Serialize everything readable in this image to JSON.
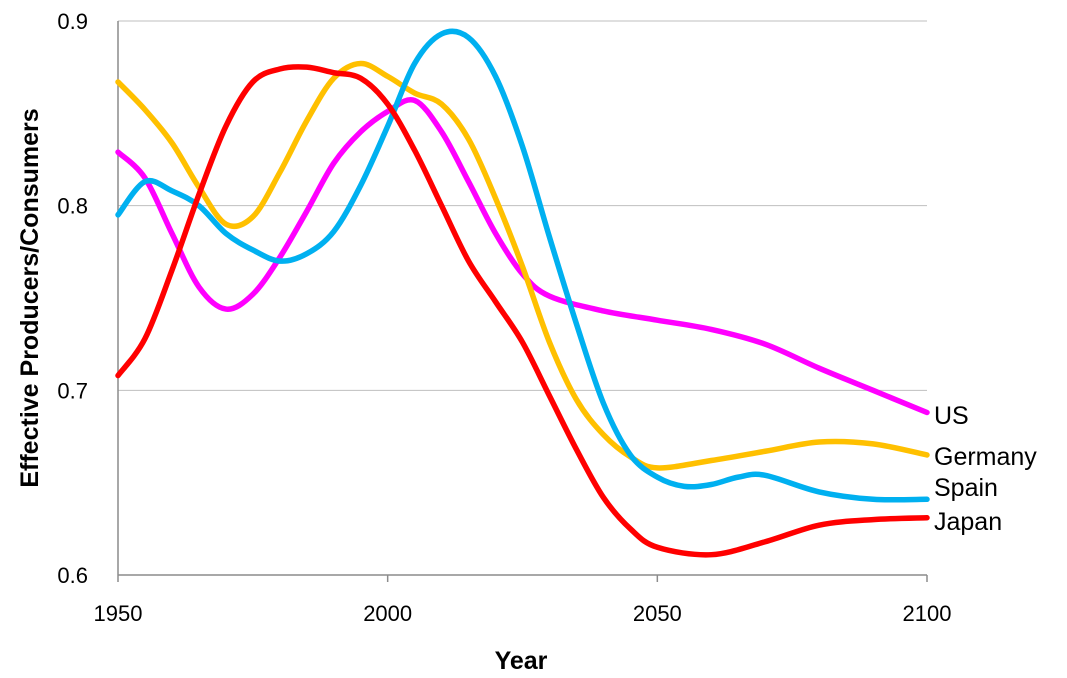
{
  "chart_data": {
    "type": "line",
    "title": "",
    "xlabel": "Year",
    "ylabel": "Effective Producers/Consumers",
    "xlim": [
      1950,
      2100
    ],
    "ylim": [
      0.6,
      0.9
    ],
    "x_ticks": [
      "1950",
      "2000",
      "2050",
      "2100"
    ],
    "y_ticks": [
      "0.6",
      "0.7",
      "0.8",
      "0.9"
    ],
    "grid": "horizontal",
    "legend": "inline labels at right end of each line",
    "series": [
      {
        "name": "US",
        "color": "#ff00ff",
        "points": [
          [
            1950,
            0.829
          ],
          [
            1955,
            0.815
          ],
          [
            1960,
            0.785
          ],
          [
            1965,
            0.756
          ],
          [
            1970,
            0.744
          ],
          [
            1975,
            0.752
          ],
          [
            1980,
            0.772
          ],
          [
            1985,
            0.797
          ],
          [
            1990,
            0.823
          ],
          [
            1995,
            0.84
          ],
          [
            2000,
            0.851
          ],
          [
            2005,
            0.857
          ],
          [
            2010,
            0.84
          ],
          [
            2015,
            0.813
          ],
          [
            2020,
            0.785
          ],
          [
            2025,
            0.763
          ],
          [
            2030,
            0.751
          ],
          [
            2040,
            0.743
          ],
          [
            2050,
            0.738
          ],
          [
            2060,
            0.733
          ],
          [
            2070,
            0.725
          ],
          [
            2080,
            0.712
          ],
          [
            2090,
            0.7
          ],
          [
            2100,
            0.688
          ]
        ]
      },
      {
        "name": "Germany",
        "color": "#ffc000",
        "points": [
          [
            1950,
            0.867
          ],
          [
            1955,
            0.852
          ],
          [
            1960,
            0.834
          ],
          [
            1965,
            0.81
          ],
          [
            1970,
            0.79
          ],
          [
            1975,
            0.794
          ],
          [
            1980,
            0.818
          ],
          [
            1985,
            0.846
          ],
          [
            1990,
            0.869
          ],
          [
            1995,
            0.877
          ],
          [
            2000,
            0.87
          ],
          [
            2005,
            0.861
          ],
          [
            2010,
            0.855
          ],
          [
            2015,
            0.836
          ],
          [
            2020,
            0.804
          ],
          [
            2025,
            0.767
          ],
          [
            2030,
            0.726
          ],
          [
            2035,
            0.695
          ],
          [
            2040,
            0.676
          ],
          [
            2045,
            0.664
          ],
          [
            2050,
            0.658
          ],
          [
            2060,
            0.662
          ],
          [
            2070,
            0.667
          ],
          [
            2080,
            0.672
          ],
          [
            2090,
            0.671
          ],
          [
            2100,
            0.665
          ]
        ]
      },
      {
        "name": "Spain",
        "color": "#00b0f0",
        "points": [
          [
            1950,
            0.795
          ],
          [
            1955,
            0.813
          ],
          [
            1960,
            0.808
          ],
          [
            1965,
            0.8
          ],
          [
            1970,
            0.785
          ],
          [
            1975,
            0.776
          ],
          [
            1980,
            0.77
          ],
          [
            1985,
            0.774
          ],
          [
            1990,
            0.786
          ],
          [
            1995,
            0.811
          ],
          [
            2000,
            0.843
          ],
          [
            2005,
            0.877
          ],
          [
            2010,
            0.893
          ],
          [
            2015,
            0.891
          ],
          [
            2020,
            0.87
          ],
          [
            2025,
            0.832
          ],
          [
            2030,
            0.783
          ],
          [
            2035,
            0.736
          ],
          [
            2040,
            0.693
          ],
          [
            2045,
            0.665
          ],
          [
            2050,
            0.653
          ],
          [
            2055,
            0.648
          ],
          [
            2060,
            0.649
          ],
          [
            2065,
            0.653
          ],
          [
            2070,
            0.654
          ],
          [
            2080,
            0.645
          ],
          [
            2090,
            0.641
          ],
          [
            2100,
            0.641
          ]
        ]
      },
      {
        "name": "Japan",
        "color": "#ff0000",
        "points": [
          [
            1950,
            0.708
          ],
          [
            1955,
            0.728
          ],
          [
            1960,
            0.765
          ],
          [
            1965,
            0.806
          ],
          [
            1970,
            0.843
          ],
          [
            1975,
            0.867
          ],
          [
            1980,
            0.874
          ],
          [
            1985,
            0.875
          ],
          [
            1990,
            0.872
          ],
          [
            1995,
            0.869
          ],
          [
            2000,
            0.855
          ],
          [
            2005,
            0.83
          ],
          [
            2010,
            0.8
          ],
          [
            2015,
            0.77
          ],
          [
            2020,
            0.748
          ],
          [
            2025,
            0.726
          ],
          [
            2030,
            0.697
          ],
          [
            2035,
            0.668
          ],
          [
            2040,
            0.642
          ],
          [
            2045,
            0.625
          ],
          [
            2050,
            0.615
          ],
          [
            2060,
            0.611
          ],
          [
            2070,
            0.618
          ],
          [
            2080,
            0.627
          ],
          [
            2090,
            0.63
          ],
          [
            2100,
            0.631
          ]
        ]
      }
    ]
  }
}
